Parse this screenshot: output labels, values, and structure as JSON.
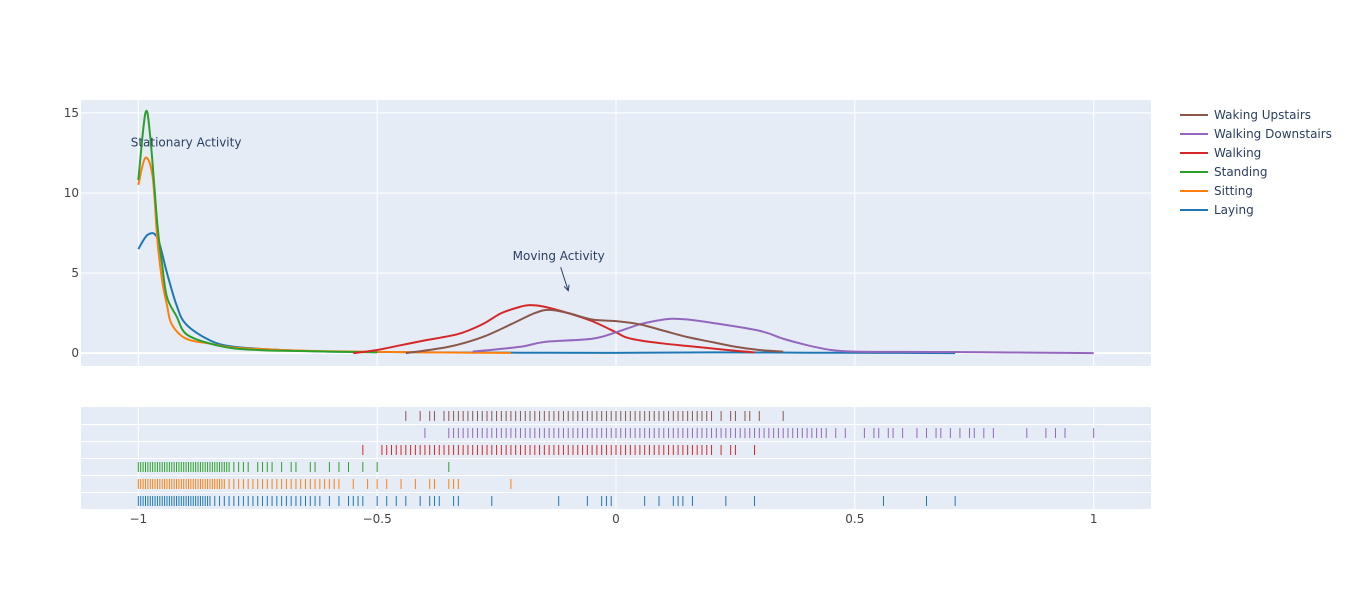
{
  "chart_data": {
    "type": "line",
    "title": "",
    "xlabel": "",
    "ylabel": "",
    "x_range": [
      -1.12,
      1.12
    ],
    "y_range": [
      -0.8,
      15.8
    ],
    "x_ticks": [
      -1,
      -0.5,
      0,
      0.5,
      1
    ],
    "x_tick_labels": [
      "−1",
      "−0.5",
      "0",
      "0.5",
      "1"
    ],
    "y_ticks": [
      0,
      5,
      10,
      15
    ],
    "y_tick_labels": [
      "0",
      "5",
      "10",
      "15"
    ],
    "grid": true,
    "legend_position": "right",
    "annotations": [
      {
        "text": "Stationary Activity",
        "x": -0.9,
        "y": 12.9,
        "arrow": false
      },
      {
        "text": "Moving Activity",
        "x": -0.12,
        "y": 5.8,
        "arrow": true,
        "arrow_to": {
          "x": -0.1,
          "y": 3.9
        }
      }
    ],
    "series": [
      {
        "name": "Waking Upstairs",
        "color": "#8c564b",
        "x": [
          -0.44,
          -0.35,
          -0.28,
          -0.22,
          -0.17,
          -0.14,
          -0.1,
          -0.05,
          0.0,
          0.05,
          0.1,
          0.15,
          0.2,
          0.25,
          0.3,
          0.35
        ],
        "y": [
          0.0,
          0.4,
          1.0,
          1.8,
          2.5,
          2.7,
          2.5,
          2.1,
          2.0,
          1.8,
          1.4,
          1.0,
          0.7,
          0.4,
          0.2,
          0.1
        ],
        "rug": [
          -0.44,
          -0.41,
          -0.39,
          -0.38,
          -0.36,
          -0.35,
          -0.34,
          -0.33,
          -0.32,
          -0.31,
          -0.3,
          -0.29,
          -0.28,
          -0.27,
          -0.26,
          -0.25,
          -0.24,
          -0.23,
          -0.22,
          -0.21,
          -0.2,
          -0.19,
          -0.18,
          -0.17,
          -0.16,
          -0.15,
          -0.14,
          -0.13,
          -0.12,
          -0.11,
          -0.1,
          -0.09,
          -0.08,
          -0.07,
          -0.06,
          -0.05,
          -0.04,
          -0.03,
          -0.02,
          -0.01,
          0.0,
          0.01,
          0.02,
          0.03,
          0.04,
          0.05,
          0.06,
          0.07,
          0.08,
          0.09,
          0.1,
          0.11,
          0.12,
          0.13,
          0.14,
          0.15,
          0.16,
          0.17,
          0.18,
          0.19,
          0.2,
          0.22,
          0.24,
          0.25,
          0.27,
          0.28,
          0.3,
          0.35
        ]
      },
      {
        "name": "Walking Downstairs",
        "color": "#9467bd",
        "x": [
          -0.3,
          -0.2,
          -0.15,
          -0.05,
          0.0,
          0.05,
          0.1,
          0.12,
          0.15,
          0.2,
          0.3,
          0.35,
          0.4,
          0.45,
          0.5,
          0.6,
          0.7,
          0.8,
          0.9,
          1.0
        ],
        "y": [
          0.1,
          0.4,
          0.7,
          0.9,
          1.3,
          1.8,
          2.1,
          2.15,
          2.1,
          1.9,
          1.4,
          0.9,
          0.5,
          0.2,
          0.1,
          0.08,
          0.07,
          0.05,
          0.03,
          0.0
        ],
        "rug": [
          -0.4,
          -0.35,
          -0.34,
          -0.33,
          -0.32,
          -0.31,
          -0.3,
          -0.29,
          -0.28,
          -0.27,
          -0.26,
          -0.25,
          -0.24,
          -0.23,
          -0.22,
          -0.21,
          -0.2,
          -0.19,
          -0.18,
          -0.17,
          -0.16,
          -0.15,
          -0.14,
          -0.13,
          -0.12,
          -0.11,
          -0.1,
          -0.09,
          -0.08,
          -0.07,
          -0.06,
          -0.05,
          -0.04,
          -0.03,
          -0.02,
          -0.01,
          0.0,
          0.01,
          0.02,
          0.03,
          0.04,
          0.05,
          0.06,
          0.07,
          0.08,
          0.09,
          0.1,
          0.11,
          0.12,
          0.13,
          0.14,
          0.15,
          0.16,
          0.17,
          0.18,
          0.19,
          0.2,
          0.21,
          0.22,
          0.23,
          0.24,
          0.25,
          0.26,
          0.27,
          0.28,
          0.29,
          0.3,
          0.31,
          0.32,
          0.33,
          0.34,
          0.35,
          0.36,
          0.37,
          0.38,
          0.39,
          0.4,
          0.41,
          0.42,
          0.43,
          0.44,
          0.46,
          0.48,
          0.52,
          0.54,
          0.55,
          0.57,
          0.58,
          0.6,
          0.63,
          0.65,
          0.67,
          0.68,
          0.7,
          0.72,
          0.74,
          0.75,
          0.77,
          0.79,
          0.86,
          0.9,
          0.92,
          0.94,
          1.0
        ]
      },
      {
        "name": "Walking",
        "color": "#d62728",
        "x": [
          -0.55,
          -0.5,
          -0.45,
          -0.4,
          -0.33,
          -0.28,
          -0.24,
          -0.2,
          -0.18,
          -0.15,
          -0.1,
          -0.05,
          0.0,
          0.02,
          0.05,
          0.1,
          0.15,
          0.2,
          0.25,
          0.29
        ],
        "y": [
          0.0,
          0.2,
          0.5,
          0.8,
          1.2,
          1.8,
          2.5,
          2.9,
          3.0,
          2.9,
          2.5,
          2.0,
          1.3,
          1.0,
          0.8,
          0.6,
          0.45,
          0.3,
          0.15,
          0.05
        ],
        "rug": [
          -0.53,
          -0.49,
          -0.48,
          -0.47,
          -0.46,
          -0.45,
          -0.44,
          -0.43,
          -0.42,
          -0.41,
          -0.4,
          -0.39,
          -0.38,
          -0.37,
          -0.36,
          -0.35,
          -0.34,
          -0.33,
          -0.32,
          -0.31,
          -0.3,
          -0.29,
          -0.28,
          -0.27,
          -0.26,
          -0.25,
          -0.24,
          -0.23,
          -0.22,
          -0.21,
          -0.2,
          -0.19,
          -0.18,
          -0.17,
          -0.16,
          -0.15,
          -0.14,
          -0.13,
          -0.12,
          -0.11,
          -0.1,
          -0.09,
          -0.08,
          -0.07,
          -0.06,
          -0.05,
          -0.04,
          -0.03,
          -0.02,
          -0.01,
          0.0,
          0.01,
          0.02,
          0.03,
          0.04,
          0.05,
          0.06,
          0.07,
          0.08,
          0.09,
          0.1,
          0.11,
          0.12,
          0.13,
          0.14,
          0.15,
          0.16,
          0.17,
          0.18,
          0.19,
          0.2,
          0.22,
          0.24,
          0.25,
          0.29
        ]
      },
      {
        "name": "Standing",
        "color": "#2ca02c",
        "x": [
          -1.0,
          -0.985,
          -0.975,
          -0.96,
          -0.95,
          -0.94,
          -0.92,
          -0.9,
          -0.85,
          -0.8,
          -0.75,
          -0.7,
          -0.6,
          -0.5
        ],
        "y": [
          10.8,
          15.0,
          13.5,
          8.0,
          5.5,
          3.5,
          2.3,
          1.2,
          0.6,
          0.3,
          0.2,
          0.15,
          0.1,
          0.05
        ],
        "rug": [
          -1.0,
          -0.995,
          -0.99,
          -0.985,
          -0.98,
          -0.975,
          -0.97,
          -0.965,
          -0.96,
          -0.955,
          -0.95,
          -0.945,
          -0.94,
          -0.935,
          -0.93,
          -0.925,
          -0.92,
          -0.915,
          -0.91,
          -0.905,
          -0.9,
          -0.895,
          -0.89,
          -0.885,
          -0.88,
          -0.875,
          -0.87,
          -0.865,
          -0.86,
          -0.855,
          -0.85,
          -0.845,
          -0.84,
          -0.835,
          -0.83,
          -0.825,
          -0.82,
          -0.815,
          -0.81,
          -0.8,
          -0.79,
          -0.78,
          -0.77,
          -0.75,
          -0.74,
          -0.73,
          -0.72,
          -0.7,
          -0.68,
          -0.67,
          -0.64,
          -0.63,
          -0.6,
          -0.58,
          -0.56,
          -0.53,
          -0.5,
          -0.35
        ]
      },
      {
        "name": "Sitting",
        "color": "#ff7f0e",
        "x": [
          -1.0,
          -0.985,
          -0.97,
          -0.96,
          -0.95,
          -0.94,
          -0.93,
          -0.9,
          -0.85,
          -0.8,
          -0.7,
          -0.6,
          -0.5,
          -0.4,
          -0.3,
          -0.22
        ],
        "y": [
          10.5,
          12.2,
          11.0,
          7.0,
          4.5,
          3.0,
          1.8,
          0.9,
          0.6,
          0.35,
          0.2,
          0.12,
          0.08,
          0.05,
          0.03,
          0.02
        ],
        "rug": [
          -1.0,
          -0.995,
          -0.99,
          -0.985,
          -0.98,
          -0.975,
          -0.97,
          -0.965,
          -0.96,
          -0.955,
          -0.95,
          -0.945,
          -0.94,
          -0.935,
          -0.93,
          -0.925,
          -0.92,
          -0.915,
          -0.91,
          -0.905,
          -0.9,
          -0.895,
          -0.89,
          -0.885,
          -0.88,
          -0.875,
          -0.87,
          -0.865,
          -0.86,
          -0.855,
          -0.85,
          -0.845,
          -0.84,
          -0.835,
          -0.83,
          -0.825,
          -0.82,
          -0.81,
          -0.8,
          -0.79,
          -0.78,
          -0.77,
          -0.76,
          -0.75,
          -0.74,
          -0.73,
          -0.72,
          -0.71,
          -0.7,
          -0.69,
          -0.68,
          -0.67,
          -0.66,
          -0.65,
          -0.64,
          -0.63,
          -0.62,
          -0.61,
          -0.6,
          -0.59,
          -0.58,
          -0.55,
          -0.52,
          -0.5,
          -0.48,
          -0.45,
          -0.42,
          -0.39,
          -0.38,
          -0.35,
          -0.34,
          -0.33,
          -0.22
        ]
      },
      {
        "name": "Laying",
        "color": "#1f77b4",
        "x": [
          -1.0,
          -0.98,
          -0.96,
          -0.94,
          -0.92,
          -0.9,
          -0.85,
          -0.8,
          -0.7,
          -0.6,
          -0.4,
          -0.2,
          0.0,
          0.2,
          0.4,
          0.6,
          0.71
        ],
        "y": [
          6.5,
          7.4,
          7.2,
          5.0,
          3.0,
          1.8,
          0.8,
          0.4,
          0.2,
          0.1,
          0.05,
          0.03,
          0.02,
          0.05,
          0.03,
          0.02,
          0.0
        ],
        "rug": [
          -1.0,
          -0.995,
          -0.99,
          -0.985,
          -0.98,
          -0.975,
          -0.97,
          -0.965,
          -0.96,
          -0.955,
          -0.95,
          -0.945,
          -0.94,
          -0.935,
          -0.93,
          -0.925,
          -0.92,
          -0.915,
          -0.91,
          -0.905,
          -0.9,
          -0.895,
          -0.89,
          -0.885,
          -0.88,
          -0.875,
          -0.87,
          -0.865,
          -0.86,
          -0.855,
          -0.85,
          -0.84,
          -0.83,
          -0.82,
          -0.81,
          -0.8,
          -0.79,
          -0.78,
          -0.77,
          -0.76,
          -0.75,
          -0.74,
          -0.73,
          -0.72,
          -0.71,
          -0.7,
          -0.69,
          -0.68,
          -0.67,
          -0.66,
          -0.65,
          -0.64,
          -0.63,
          -0.62,
          -0.6,
          -0.58,
          -0.56,
          -0.55,
          -0.54,
          -0.53,
          -0.5,
          -0.48,
          -0.46,
          -0.44,
          -0.41,
          -0.39,
          -0.38,
          -0.37,
          -0.34,
          -0.33,
          -0.26,
          -0.12,
          -0.06,
          -0.03,
          -0.02,
          -0.01,
          0.06,
          0.09,
          0.12,
          0.13,
          0.14,
          0.16,
          0.23,
          0.29,
          0.56,
          0.65,
          0.71
        ]
      }
    ]
  }
}
